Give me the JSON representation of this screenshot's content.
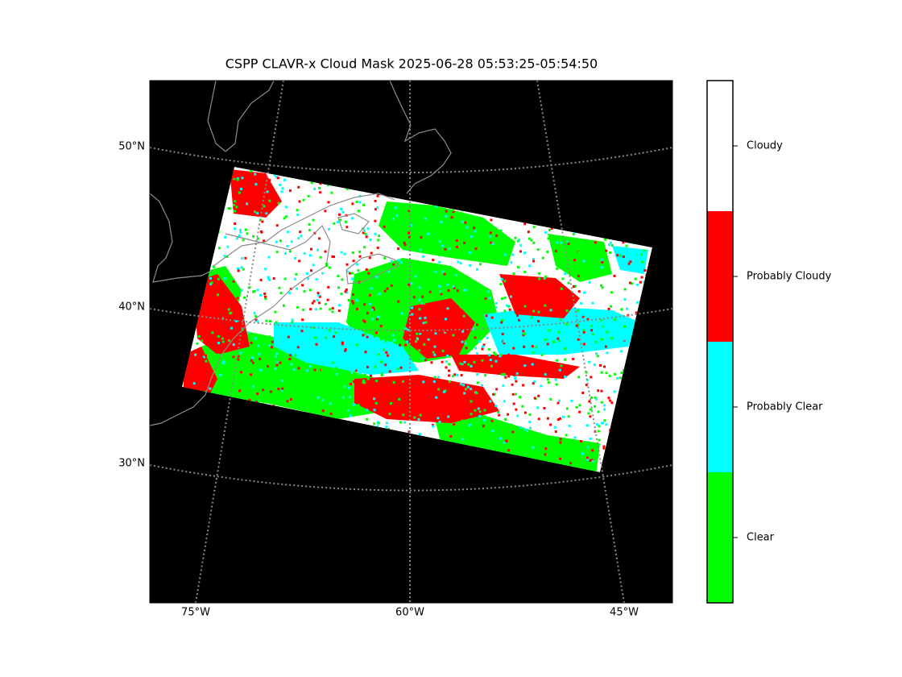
{
  "title": "CSPP CLAVR-x Cloud Mask 2025-06-28 05:53:25-05:54:50",
  "map": {
    "lat_labels": [
      "50°N",
      "40°N",
      "30°N"
    ],
    "lon_labels": [
      "75°W",
      "60°W",
      "45°W"
    ]
  },
  "colorbar": {
    "classes": [
      {
        "label": "Cloudy",
        "color": "#ffffff"
      },
      {
        "label": "Probably Cloudy",
        "color": "#ff0000"
      },
      {
        "label": "Probably Clear",
        "color": "#00ffff"
      },
      {
        "label": "Clear",
        "color": "#00ff00"
      }
    ]
  }
}
